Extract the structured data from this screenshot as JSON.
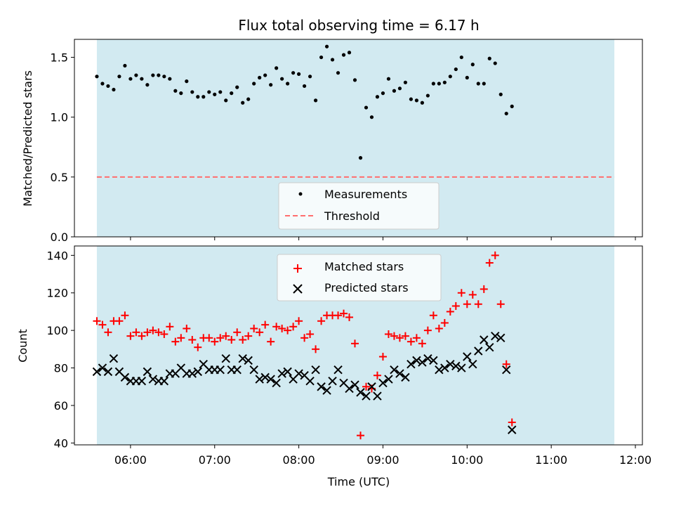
{
  "chart_data": [
    {
      "type": "scatter",
      "title": "Flux total observing time = 6.17 h",
      "ylabel": "Matched/Predicted stars",
      "xlabel": "",
      "ylim": [
        0,
        1.65
      ],
      "yticks": [
        "0.0",
        "0.5",
        "1.0",
        "1.5"
      ],
      "x_range": [
        "05:20",
        "12:05"
      ],
      "xtick_labels": [],
      "shaded_interval": [
        "05:36",
        "11:45"
      ],
      "shade_color": "#add8e6",
      "legend_position": "lower center",
      "series": [
        {
          "name": "Measurements",
          "color": "#000000",
          "marker": "dot",
          "points": [
            [
              "05:36",
              1.34
            ],
            [
              "05:40",
              1.28
            ],
            [
              "05:44",
              1.26
            ],
            [
              "05:48",
              1.23
            ],
            [
              "05:52",
              1.34
            ],
            [
              "05:56",
              1.43
            ],
            [
              "06:00",
              1.32
            ],
            [
              "06:04",
              1.35
            ],
            [
              "06:08",
              1.32
            ],
            [
              "06:12",
              1.27
            ],
            [
              "06:16",
              1.35
            ],
            [
              "06:20",
              1.35
            ],
            [
              "06:24",
              1.34
            ],
            [
              "06:28",
              1.32
            ],
            [
              "06:32",
              1.22
            ],
            [
              "06:36",
              1.2
            ],
            [
              "06:40",
              1.3
            ],
            [
              "06:44",
              1.21
            ],
            [
              "06:48",
              1.17
            ],
            [
              "06:52",
              1.17
            ],
            [
              "06:56",
              1.21
            ],
            [
              "07:00",
              1.19
            ],
            [
              "07:04",
              1.21
            ],
            [
              "07:08",
              1.14
            ],
            [
              "07:12",
              1.2
            ],
            [
              "07:16",
              1.25
            ],
            [
              "07:20",
              1.12
            ],
            [
              "07:24",
              1.15
            ],
            [
              "07:28",
              1.28
            ],
            [
              "07:32",
              1.33
            ],
            [
              "07:36",
              1.35
            ],
            [
              "07:40",
              1.27
            ],
            [
              "07:44",
              1.41
            ],
            [
              "07:48",
              1.32
            ],
            [
              "07:52",
              1.28
            ],
            [
              "07:56",
              1.37
            ],
            [
              "08:00",
              1.36
            ],
            [
              "08:04",
              1.26
            ],
            [
              "08:08",
              1.34
            ],
            [
              "08:12",
              1.14
            ],
            [
              "08:16",
              1.5
            ],
            [
              "08:20",
              1.59
            ],
            [
              "08:24",
              1.48
            ],
            [
              "08:28",
              1.37
            ],
            [
              "08:32",
              1.52
            ],
            [
              "08:36",
              1.54
            ],
            [
              "08:40",
              1.31
            ],
            [
              "08:44",
              0.66
            ],
            [
              "08:48",
              1.08
            ],
            [
              "08:52",
              1.0
            ],
            [
              "08:56",
              1.17
            ],
            [
              "09:00",
              1.2
            ],
            [
              "09:04",
              1.32
            ],
            [
              "09:08",
              1.22
            ],
            [
              "09:12",
              1.24
            ],
            [
              "09:16",
              1.29
            ],
            [
              "09:20",
              1.15
            ],
            [
              "09:24",
              1.14
            ],
            [
              "09:28",
              1.12
            ],
            [
              "09:32",
              1.18
            ],
            [
              "09:36",
              1.28
            ],
            [
              "09:40",
              1.28
            ],
            [
              "09:44",
              1.29
            ],
            [
              "09:48",
              1.34
            ],
            [
              "09:52",
              1.4
            ],
            [
              "09:56",
              1.5
            ],
            [
              "10:00",
              1.33
            ],
            [
              "10:04",
              1.44
            ],
            [
              "10:08",
              1.28
            ],
            [
              "10:12",
              1.28
            ],
            [
              "10:16",
              1.49
            ],
            [
              "10:20",
              1.45
            ],
            [
              "10:24",
              1.19
            ],
            [
              "10:28",
              1.03
            ],
            [
              "10:32",
              1.09
            ]
          ]
        },
        {
          "name": "Threshold",
          "color": "#ff6e6e",
          "style": "dashed",
          "value": 0.5
        }
      ]
    },
    {
      "type": "scatter",
      "title": "",
      "xlabel": "Time (UTC)",
      "ylabel": "Count",
      "ylim": [
        39,
        145
      ],
      "yticks": [
        "40",
        "60",
        "80",
        "100",
        "120",
        "140"
      ],
      "x_range": [
        "05:20",
        "12:05"
      ],
      "xtick_labels": [
        "06:00",
        "07:00",
        "08:00",
        "09:00",
        "10:00",
        "11:00",
        "12:00"
      ],
      "shaded_interval": [
        "05:36",
        "11:45"
      ],
      "shade_color": "#add8e6",
      "legend_position": "upper center",
      "series": [
        {
          "name": "Matched stars",
          "color": "#ff0000",
          "marker": "plus",
          "points": [
            [
              "05:36",
              105
            ],
            [
              "05:40",
              103
            ],
            [
              "05:44",
              99
            ],
            [
              "05:48",
              105
            ],
            [
              "05:52",
              105
            ],
            [
              "05:56",
              108
            ],
            [
              "06:00",
              97
            ],
            [
              "06:04",
              99
            ],
            [
              "06:08",
              97
            ],
            [
              "06:12",
              99
            ],
            [
              "06:16",
              100
            ],
            [
              "06:20",
              99
            ],
            [
              "06:24",
              98
            ],
            [
              "06:28",
              102
            ],
            [
              "06:32",
              94
            ],
            [
              "06:36",
              96
            ],
            [
              "06:40",
              101
            ],
            [
              "06:44",
              95
            ],
            [
              "06:48",
              91
            ],
            [
              "06:52",
              96
            ],
            [
              "06:56",
              96
            ],
            [
              "07:00",
              94
            ],
            [
              "07:04",
              96
            ],
            [
              "07:08",
              97
            ],
            [
              "07:12",
              95
            ],
            [
              "07:16",
              99
            ],
            [
              "07:20",
              95
            ],
            [
              "07:24",
              97
            ],
            [
              "07:28",
              101
            ],
            [
              "07:32",
              99
            ],
            [
              "07:36",
              103
            ],
            [
              "07:40",
              94
            ],
            [
              "07:44",
              102
            ],
            [
              "07:48",
              101
            ],
            [
              "07:52",
              100
            ],
            [
              "07:56",
              102
            ],
            [
              "08:00",
              105
            ],
            [
              "08:04",
              96
            ],
            [
              "08:08",
              98
            ],
            [
              "08:12",
              90
            ],
            [
              "08:16",
              105
            ],
            [
              "08:20",
              108
            ],
            [
              "08:24",
              108
            ],
            [
              "08:28",
              108
            ],
            [
              "08:32",
              109
            ],
            [
              "08:36",
              107
            ],
            [
              "08:40",
              93
            ],
            [
              "08:44",
              44
            ],
            [
              "08:48",
              70
            ],
            [
              "08:52",
              69
            ],
            [
              "08:56",
              76
            ],
            [
              "09:00",
              86
            ],
            [
              "09:04",
              98
            ],
            [
              "09:08",
              97
            ],
            [
              "09:12",
              96
            ],
            [
              "09:16",
              97
            ],
            [
              "09:20",
              94
            ],
            [
              "09:24",
              96
            ],
            [
              "09:28",
              93
            ],
            [
              "09:32",
              100
            ],
            [
              "09:36",
              108
            ],
            [
              "09:40",
              101
            ],
            [
              "09:44",
              104
            ],
            [
              "09:48",
              110
            ],
            [
              "09:52",
              113
            ],
            [
              "09:56",
              120
            ],
            [
              "10:00",
              114
            ],
            [
              "10:04",
              119
            ],
            [
              "10:08",
              114
            ],
            [
              "10:12",
              122
            ],
            [
              "10:16",
              136
            ],
            [
              "10:20",
              140
            ],
            [
              "10:24",
              114
            ],
            [
              "10:28",
              82
            ],
            [
              "10:32",
              51
            ]
          ]
        },
        {
          "name": "Predicted stars",
          "color": "#000000",
          "marker": "x",
          "points": [
            [
              "05:36",
              78
            ],
            [
              "05:40",
              80
            ],
            [
              "05:44",
              78
            ],
            [
              "05:48",
              85
            ],
            [
              "05:52",
              78
            ],
            [
              "05:56",
              75
            ],
            [
              "06:00",
              73
            ],
            [
              "06:04",
              73
            ],
            [
              "06:08",
              73
            ],
            [
              "06:12",
              78
            ],
            [
              "06:16",
              74
            ],
            [
              "06:20",
              73
            ],
            [
              "06:24",
              73
            ],
            [
              "06:28",
              77
            ],
            [
              "06:32",
              77
            ],
            [
              "06:36",
              80
            ],
            [
              "06:40",
              77
            ],
            [
              "06:44",
              77
            ],
            [
              "06:48",
              78
            ],
            [
              "06:52",
              82
            ],
            [
              "06:56",
              79
            ],
            [
              "07:00",
              79
            ],
            [
              "07:04",
              79
            ],
            [
              "07:08",
              85
            ],
            [
              "07:12",
              79
            ],
            [
              "07:16",
              79
            ],
            [
              "07:20",
              85
            ],
            [
              "07:24",
              84
            ],
            [
              "07:28",
              79
            ],
            [
              "07:32",
              74
            ],
            [
              "07:36",
              75
            ],
            [
              "07:40",
              74
            ],
            [
              "07:44",
              72
            ],
            [
              "07:48",
              77
            ],
            [
              "07:52",
              78
            ],
            [
              "07:56",
              74
            ],
            [
              "08:00",
              77
            ],
            [
              "08:04",
              76
            ],
            [
              "08:08",
              73
            ],
            [
              "08:12",
              79
            ],
            [
              "08:16",
              70
            ],
            [
              "08:20",
              68
            ],
            [
              "08:24",
              73
            ],
            [
              "08:28",
              79
            ],
            [
              "08:32",
              72
            ],
            [
              "08:36",
              69
            ],
            [
              "08:40",
              71
            ],
            [
              "08:44",
              67
            ],
            [
              "08:48",
              65
            ],
            [
              "08:52",
              70
            ],
            [
              "08:56",
              65
            ],
            [
              "09:00",
              72
            ],
            [
              "09:04",
              74
            ],
            [
              "09:08",
              79
            ],
            [
              "09:12",
              77
            ],
            [
              "09:16",
              75
            ],
            [
              "09:20",
              82
            ],
            [
              "09:24",
              84
            ],
            [
              "09:28",
              83
            ],
            [
              "09:32",
              85
            ],
            [
              "09:36",
              84
            ],
            [
              "09:40",
              79
            ],
            [
              "09:44",
              80
            ],
            [
              "09:48",
              82
            ],
            [
              "09:52",
              81
            ],
            [
              "09:56",
              80
            ],
            [
              "10:00",
              86
            ],
            [
              "10:04",
              82
            ],
            [
              "10:08",
              89
            ],
            [
              "10:12",
              95
            ],
            [
              "10:16",
              91
            ],
            [
              "10:20",
              97
            ],
            [
              "10:24",
              96
            ],
            [
              "10:28",
              79
            ],
            [
              "10:32",
              47
            ]
          ]
        }
      ]
    }
  ]
}
